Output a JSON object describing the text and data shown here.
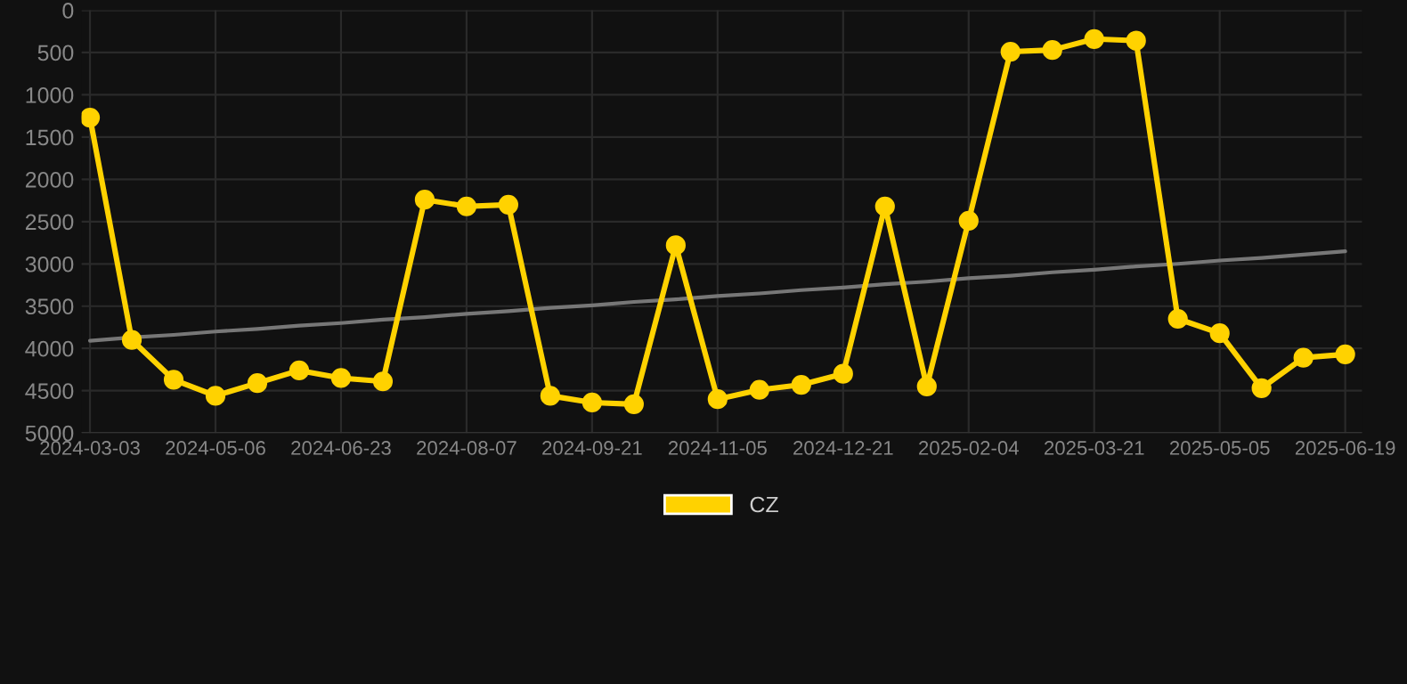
{
  "chart_data": {
    "type": "line",
    "categories": [
      "2024-03-03",
      null,
      null,
      "2024-05-06",
      null,
      null,
      "2024-06-23",
      null,
      null,
      "2024-08-07",
      null,
      null,
      "2024-09-21",
      null,
      null,
      "2024-11-05",
      null,
      null,
      "2024-12-21",
      null,
      null,
      "2025-02-04",
      null,
      null,
      "2025-03-21",
      null,
      null,
      "2025-05-05",
      null,
      null,
      "2025-06-19"
    ],
    "series": [
      {
        "name": "CZ",
        "color": "#ffd200",
        "marker": "circle",
        "values": [
          1270,
          3900,
          4370,
          4560,
          4410,
          4260,
          4350,
          4390,
          2240,
          2320,
          2300,
          4560,
          4640,
          4660,
          2780,
          4600,
          4490,
          4430,
          4300,
          2320,
          4450,
          2490,
          490,
          470,
          340,
          360,
          3650,
          3820,
          4470,
          4110,
          4070
        ]
      },
      {
        "type": "line",
        "color": "#777777",
        "marker": "none",
        "values": [
          3910,
          3870,
          3840,
          3800,
          3770,
          3730,
          3700,
          3660,
          3630,
          3590,
          3560,
          3520,
          3490,
          3450,
          3420,
          3380,
          3350,
          3310,
          3280,
          3240,
          3210,
          3170,
          3140,
          3100,
          3070,
          3030,
          3000,
          2960,
          2930,
          2890,
          2850
        ]
      }
    ],
    "ylim": [
      5000,
      0
    ],
    "yticks": [
      0,
      500,
      1000,
      1500,
      2000,
      2500,
      3000,
      3500,
      4000,
      4500,
      5000
    ],
    "grid": true,
    "legend": "bottom"
  }
}
